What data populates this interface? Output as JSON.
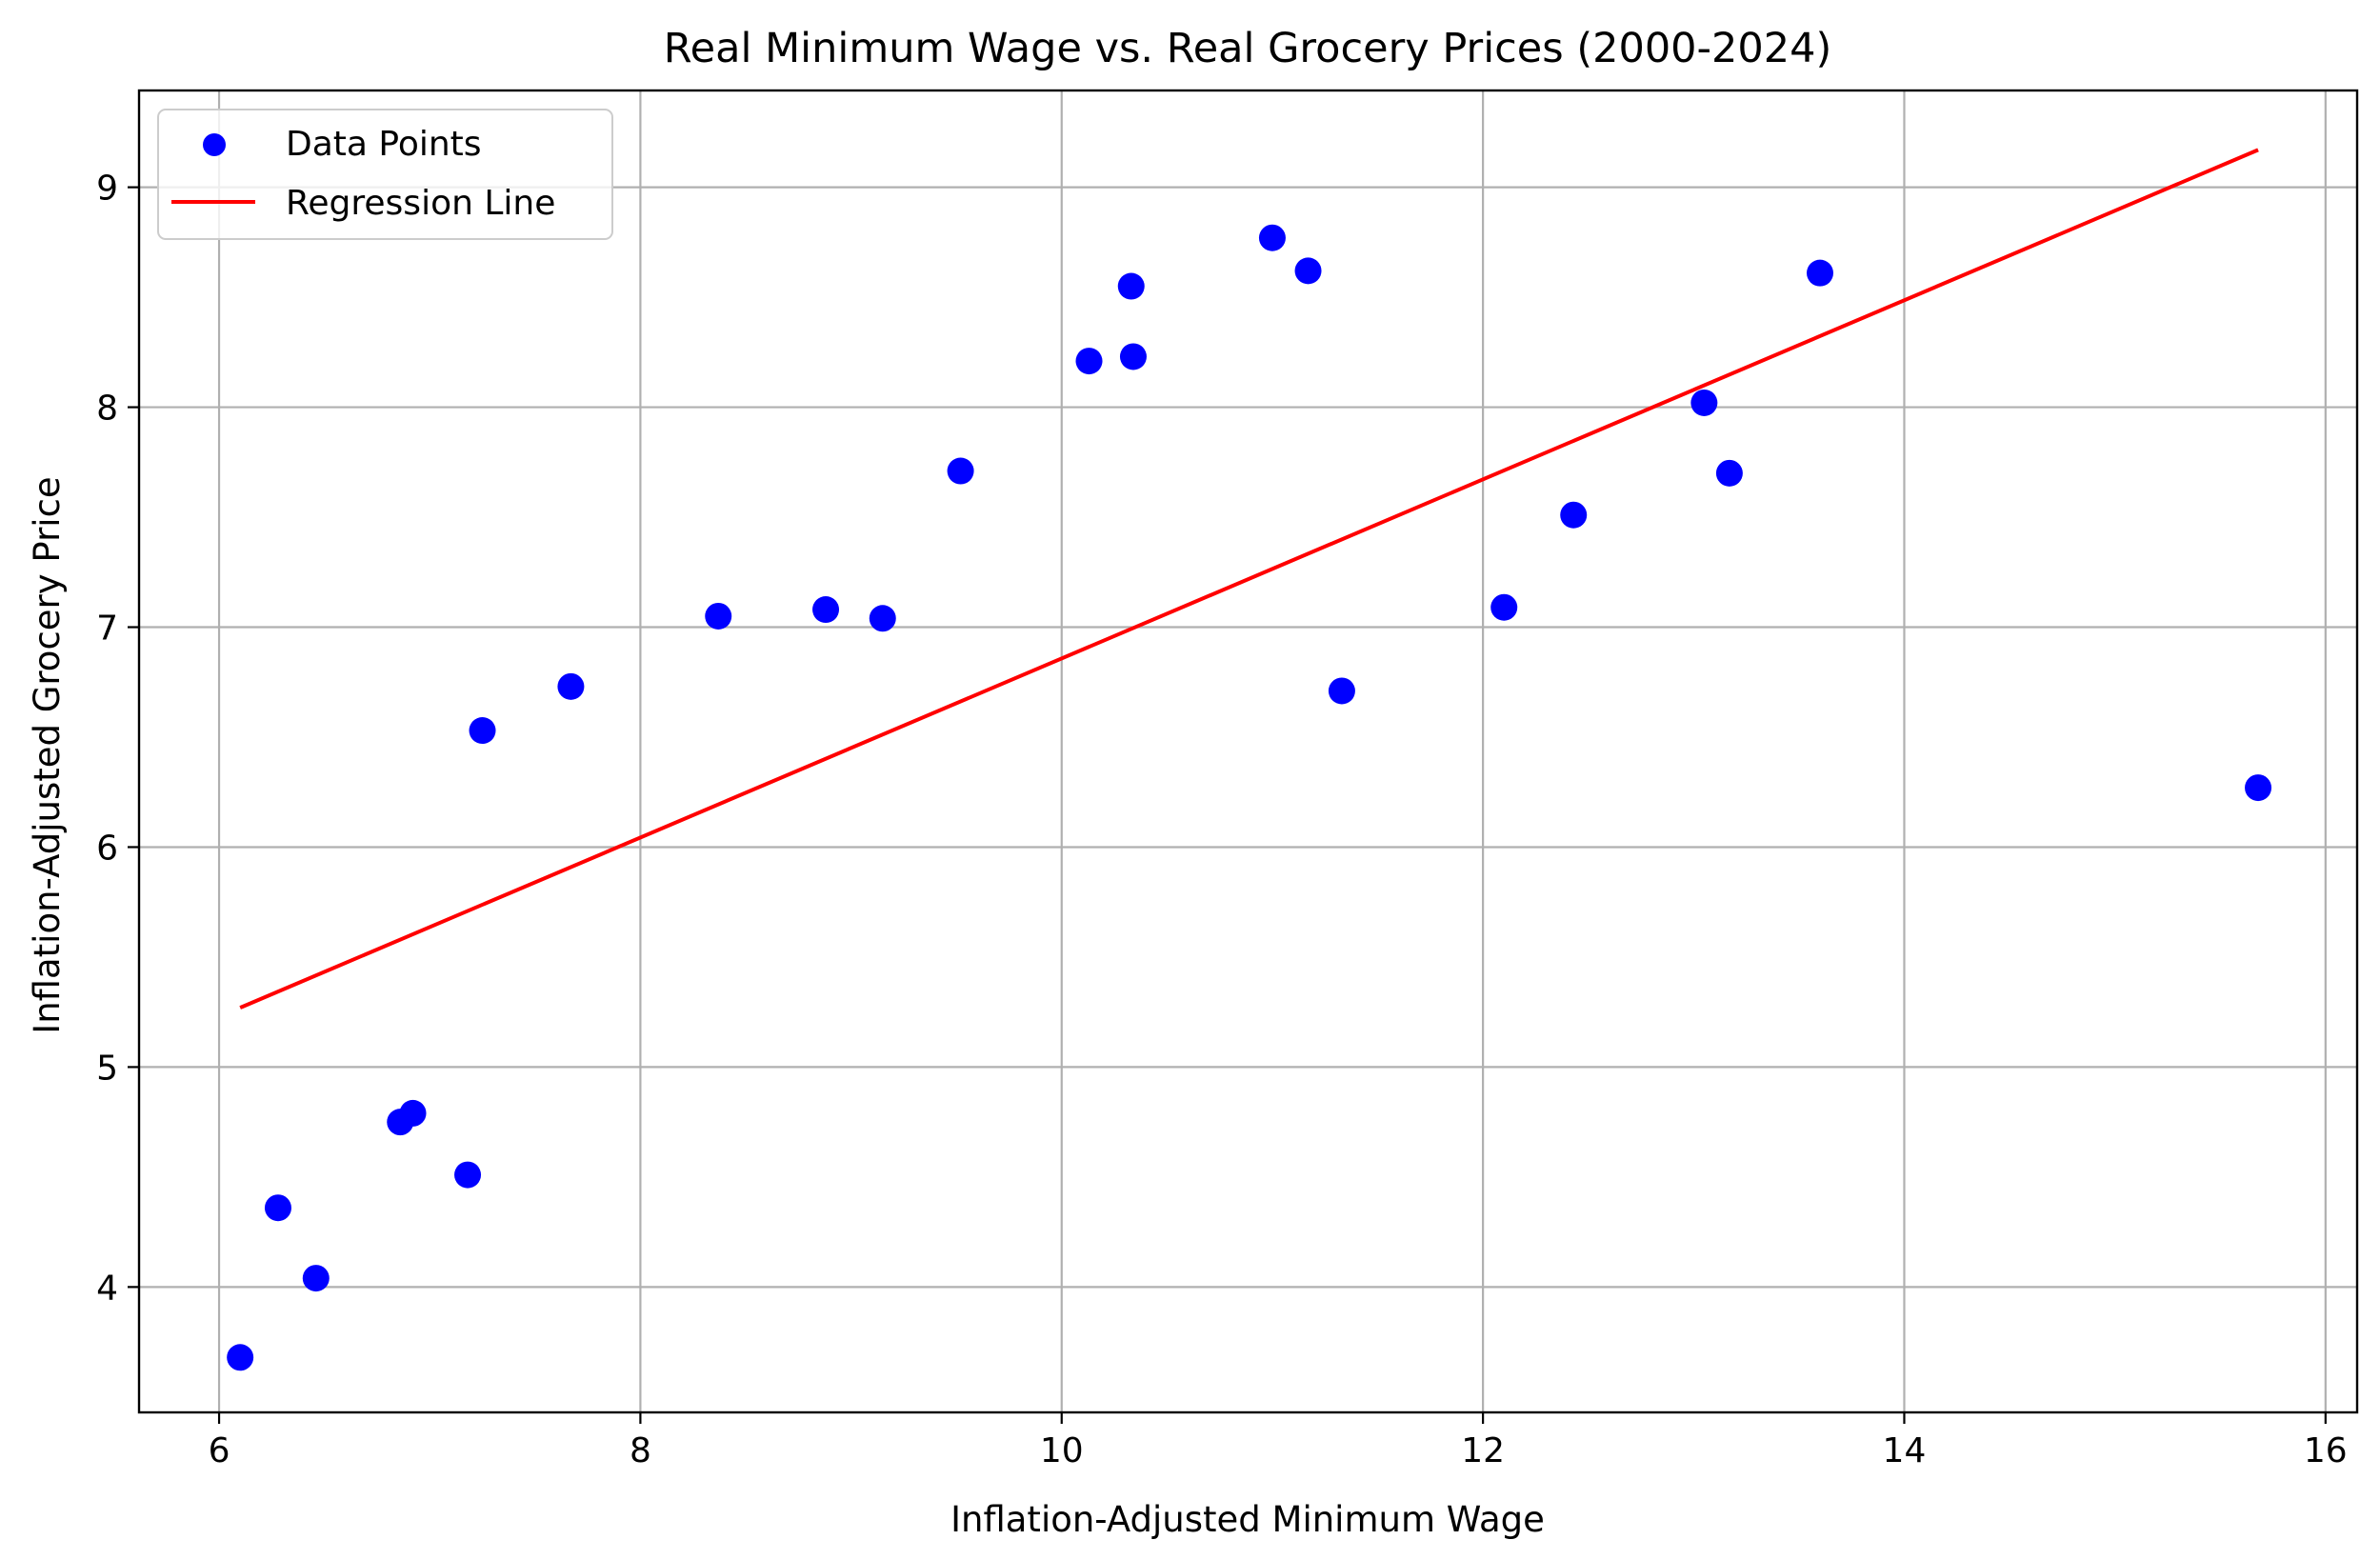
{
  "chart_data": {
    "type": "scatter",
    "title": "Real Minimum Wage vs. Real Grocery Prices (2000-2024)",
    "xlabel": "Inflation-Adjusted Minimum Wage",
    "ylabel": "Inflation-Adjusted Grocery Price",
    "xlim": [
      5.62,
      16.15
    ],
    "ylim": [
      3.43,
      9.44
    ],
    "xticks": [
      "6",
      "8",
      "10",
      "12",
      "14",
      "16"
    ],
    "yticks": [
      "4",
      "5",
      "6",
      "7",
      "8",
      "9"
    ],
    "grid": true,
    "legend_position": "top-left",
    "series": [
      {
        "name": "Data Points",
        "kind": "scatter",
        "color": "#0000ff",
        "points": [
          [
            6.1,
            3.68
          ],
          [
            6.28,
            4.36
          ],
          [
            6.46,
            4.04
          ],
          [
            6.86,
            4.75
          ],
          [
            6.92,
            4.79
          ],
          [
            7.18,
            4.51
          ],
          [
            7.25,
            6.53
          ],
          [
            7.67,
            6.73
          ],
          [
            8.37,
            7.05
          ],
          [
            8.88,
            7.08
          ],
          [
            9.15,
            7.04
          ],
          [
            9.52,
            7.71
          ],
          [
            10.13,
            8.21
          ],
          [
            10.33,
            8.55
          ],
          [
            10.34,
            8.23
          ],
          [
            11.0,
            8.77
          ],
          [
            11.17,
            8.62
          ],
          [
            11.33,
            6.71
          ],
          [
            12.1,
            7.09
          ],
          [
            12.43,
            7.51
          ],
          [
            13.05,
            8.02
          ],
          [
            13.17,
            7.7
          ],
          [
            13.6,
            8.61
          ],
          [
            15.68,
            6.27
          ]
        ]
      },
      {
        "name": "Regression Line",
        "kind": "line",
        "color": "#ff0000",
        "points": [
          [
            6.1,
            5.27
          ],
          [
            15.68,
            9.17
          ]
        ]
      }
    ]
  }
}
